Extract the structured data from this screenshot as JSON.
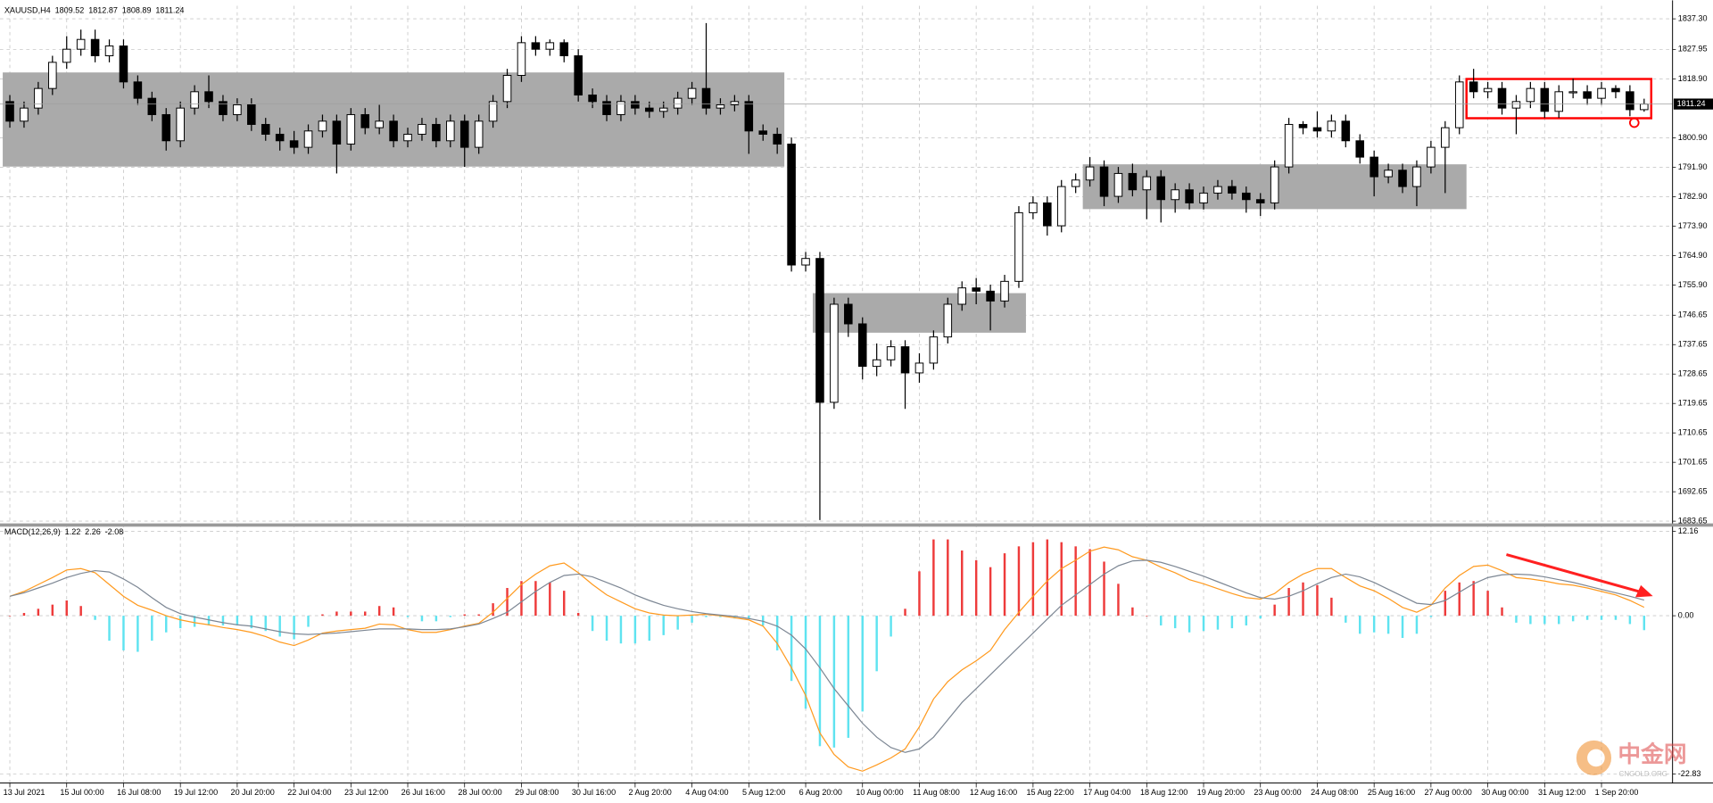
{
  "chart_data": [
    {
      "type": "candlestick",
      "title": "XAUUSD,H4",
      "categories": [
        "13 Jul 2021",
        null,
        null,
        null,
        "15 Jul 00:00",
        null,
        null,
        null,
        "16 Jul 08:00",
        null,
        null,
        null,
        "19 Jul 12:00",
        null,
        null,
        null,
        "20 Jul 20:00",
        null,
        null,
        null,
        "22 Jul 04:00",
        null,
        null,
        null,
        "23 Jul 12:00",
        null,
        null,
        null,
        "26 Jul 16:00",
        null,
        null,
        null,
        "28 Jul 00:00",
        null,
        null,
        null,
        "29 Jul 08:00",
        null,
        null,
        null,
        "30 Jul 16:00",
        null,
        null,
        null,
        "2 Aug 20:00",
        null,
        null,
        null,
        "4 Aug 04:00",
        null,
        null,
        null,
        "5 Aug 12:00",
        null,
        null,
        null,
        "6 Aug 20:00",
        null,
        null,
        null,
        "10 Aug 00:00",
        null,
        null,
        null,
        "11 Aug 08:00",
        null,
        null,
        null,
        "12 Aug 16:00",
        null,
        null,
        null,
        "15 Aug 22:00",
        null,
        null,
        null,
        "17 Aug 04:00",
        null,
        null,
        null,
        "18 Aug 12:00",
        null,
        null,
        null,
        "19 Aug 20:00",
        null,
        null,
        null,
        "23 Aug 00:00",
        null,
        null,
        null,
        "24 Aug 08:00",
        null,
        null,
        null,
        "25 Aug 16:00",
        null,
        null,
        null,
        "27 Aug 00:00",
        null,
        null,
        null,
        "30 Aug 00:00",
        null,
        null,
        null,
        "31 Aug 12:00",
        null,
        null,
        null,
        "1 Sep 20:00",
        null,
        null,
        null
      ],
      "open": [
        1812,
        1806,
        1810,
        1816,
        1824,
        1828,
        1831,
        1826,
        1829,
        1818,
        1813,
        1808,
        1800,
        1810,
        1815,
        1812,
        1808,
        1811,
        1805,
        1802,
        1800,
        1798,
        1803,
        1806,
        1799,
        1808,
        1804,
        1806,
        1800,
        1802,
        1805,
        1800,
        1806,
        1798,
        1806,
        1812,
        1820,
        1830,
        1828,
        1830,
        1826,
        1814,
        1812,
        1808,
        1812,
        1810,
        1809,
        1810,
        1813,
        1816,
        1810,
        1811,
        1812,
        1803,
        1802,
        1799,
        1762,
        1764,
        1720,
        1750,
        1744,
        1731,
        1733,
        1737,
        1729,
        1732,
        1740,
        1750,
        1755,
        1754,
        1751,
        1757,
        1778,
        1781,
        1774,
        1786,
        1788,
        1792,
        1783,
        1790,
        1785,
        1789,
        1782,
        1785,
        1781,
        1784,
        1786,
        1784,
        1782,
        1781,
        1792,
        1805,
        1804,
        1803,
        1806,
        1800,
        1795,
        1789,
        1791,
        1786,
        1792,
        1798,
        1804,
        1818,
        1815,
        1816,
        1810,
        1812,
        1816,
        1809,
        1815,
        1815,
        1813,
        1816,
        1815,
        1809.52
      ],
      "high": [
        1814,
        1812,
        1818,
        1826,
        1832,
        1834,
        1834,
        1831,
        1831,
        1820,
        1815,
        1810,
        1812,
        1817,
        1820,
        1814,
        1813,
        1813,
        1807,
        1804,
        1803,
        1805,
        1808,
        1808,
        1810,
        1810,
        1811,
        1808,
        1804,
        1807,
        1807,
        1808,
        1808,
        1808,
        1814,
        1822,
        1832,
        1832,
        1831,
        1831,
        1828,
        1816,
        1814,
        1814,
        1814,
        1812,
        1812,
        1815,
        1818,
        1836,
        1813,
        1814,
        1814,
        1805,
        1804,
        1801,
        1766,
        1766,
        1752,
        1752,
        1746,
        1738,
        1739,
        1739,
        1735,
        1742,
        1752,
        1757,
        1758,
        1756,
        1759,
        1780,
        1783,
        1783,
        1788,
        1790,
        1795,
        1794,
        1792,
        1793,
        1791,
        1791,
        1787,
        1787,
        1786,
        1788,
        1788,
        1786,
        1784,
        1794,
        1807,
        1806,
        1809,
        1808,
        1808,
        1802,
        1797,
        1793,
        1793,
        1794,
        1800,
        1806,
        1820,
        1822,
        1818,
        1818,
        1814,
        1818,
        1818,
        1817,
        1819,
        1817,
        1818,
        1817,
        1817,
        1812.87
      ],
      "low": [
        1804,
        1804,
        1808,
        1814,
        1822,
        1826,
        1824,
        1824,
        1816,
        1811,
        1806,
        1797,
        1798,
        1808,
        1810,
        1806,
        1806,
        1803,
        1800,
        1797,
        1796,
        1796,
        1801,
        1790,
        1797,
        1802,
        1802,
        1798,
        1798,
        1800,
        1798,
        1798,
        1792,
        1796,
        1804,
        1810,
        1818,
        1826,
        1826,
        1824,
        1812,
        1810,
        1806,
        1806,
        1808,
        1807,
        1807,
        1808,
        1811,
        1808,
        1808,
        1809,
        1796,
        1800,
        1796,
        1760,
        1760,
        1684,
        1718,
        1740,
        1727,
        1728,
        1731,
        1718,
        1726,
        1730,
        1738,
        1748,
        1750,
        1742,
        1749,
        1755,
        1776,
        1771,
        1772,
        1784,
        1786,
        1780,
        1781,
        1783,
        1776,
        1775,
        1778,
        1779,
        1779,
        1782,
        1782,
        1778,
        1777,
        1779,
        1790,
        1802,
        1801,
        1801,
        1798,
        1793,
        1783,
        1787,
        1784,
        1780,
        1790,
        1784,
        1802,
        1813,
        1813,
        1808,
        1802,
        1810,
        1807,
        1807,
        1813,
        1811,
        1811,
        1813,
        1807.5,
        1808.89
      ],
      "close": [
        1806,
        1810,
        1816,
        1824,
        1828,
        1831,
        1826,
        1829,
        1818,
        1813,
        1808,
        1800,
        1810,
        1815,
        1812,
        1808,
        1811,
        1805,
        1802,
        1800,
        1798,
        1803,
        1806,
        1799,
        1808,
        1804,
        1806,
        1800,
        1802,
        1805,
        1800,
        1806,
        1798,
        1806,
        1812,
        1820,
        1830,
        1828,
        1830,
        1826,
        1814,
        1812,
        1808,
        1812,
        1810,
        1809,
        1810,
        1813,
        1816,
        1810,
        1811,
        1812,
        1803,
        1802,
        1799,
        1762,
        1764,
        1720,
        1750,
        1744,
        1731,
        1733,
        1737,
        1729,
        1732,
        1740,
        1750,
        1755,
        1754,
        1751,
        1757,
        1778,
        1781,
        1774,
        1786,
        1788,
        1792,
        1783,
        1790,
        1785,
        1789,
        1782,
        1785,
        1781,
        1784,
        1786,
        1784,
        1782,
        1781,
        1792,
        1805,
        1804,
        1803,
        1806,
        1800,
        1795,
        1789,
        1791,
        1786,
        1792,
        1798,
        1804,
        1818,
        1815,
        1816,
        1810,
        1812,
        1816,
        1809,
        1815,
        1815,
        1813,
        1816,
        1815,
        1809.52,
        1811.24
      ],
      "up_color": "#ffffff",
      "down_color": "#000000",
      "ylim": [
        1682.8,
        1841.3
      ],
      "yticks": [
        {
          "value": 1837.3,
          "label": "1837.30"
        },
        {
          "value": 1827.95,
          "label": "1827.95"
        },
        {
          "value": 1818.9,
          "label": "1818.90"
        },
        {
          "value": 1800.9,
          "label": "1800.90"
        },
        {
          "value": 1791.9,
          "label": "1791.90"
        },
        {
          "value": 1782.9,
          "label": "1782.90"
        },
        {
          "value": 1773.9,
          "label": "1773.90"
        },
        {
          "value": 1764.9,
          "label": "1764.90"
        },
        {
          "value": 1755.9,
          "label": "1755.90"
        },
        {
          "value": 1746.65,
          "label": "1746.65"
        },
        {
          "value": 1737.65,
          "label": "1737.65"
        },
        {
          "value": 1728.65,
          "label": "1728.65"
        },
        {
          "value": 1719.65,
          "label": "1719.65"
        },
        {
          "value": 1710.65,
          "label": "1710.65"
        },
        {
          "value": 1701.65,
          "label": "1701.65"
        },
        {
          "value": 1692.65,
          "label": "1692.65"
        },
        {
          "value": 1683.65,
          "label": "1683.65"
        }
      ],
      "grid": true,
      "last_price_line": true,
      "zones": [
        {
          "start": 0,
          "end": 54,
          "low": 1792.1,
          "high": 1820.9,
          "color": "#aaaaaa",
          "style": "fill"
        },
        {
          "start": 57,
          "end": 71,
          "low": 1741.3,
          "high": 1753.4,
          "color": "#aaaaaa",
          "style": "fill"
        },
        {
          "start": 76,
          "end": 102,
          "low": 1779.1,
          "high": 1792.8,
          "color": "#aaaaaa",
          "style": "fill"
        },
        {
          "start": 103,
          "end": 115,
          "low": 1806.9,
          "high": 1818.9,
          "color": "#ff0000",
          "style": "outline"
        }
      ]
    },
    {
      "type": "macd",
      "title": "MACD(12,26,9)",
      "series": [
        {
          "style": "histogram",
          "color": "#ee3b3b",
          "negative_color": "#5fe3f0",
          "values": [
            0,
            0.4,
            1,
            1.6,
            2.2,
            1.4,
            -0.6,
            -3.6,
            -5,
            -5.2,
            -3.6,
            -2.4,
            -1.8,
            -1.6,
            -1.4,
            -1.4,
            -1.4,
            -1.8,
            -2.2,
            -3,
            -3.4,
            -1.6,
            0.2,
            0.6,
            0.6,
            0.6,
            1.4,
            1.2,
            -0.2,
            -0.8,
            -0.8,
            -0.2,
            0.2,
            0.2,
            1.8,
            4,
            5,
            5,
            4.8,
            3.6,
            0.4,
            -2.2,
            -3.6,
            -4,
            -4,
            -3.6,
            -2.8,
            -2,
            -1,
            -0.2,
            -0.2,
            -0.4,
            -0.4,
            -1.4,
            -5,
            -9.4,
            -13.4,
            -18.8,
            -19,
            -17.6,
            -13.8,
            -8,
            -3,
            1,
            6.4,
            11,
            11,
            9.4,
            8,
            7,
            9,
            10,
            10.6,
            11,
            10.6,
            10,
            9.6,
            7.8,
            4.6,
            1.2,
            0,
            -1.4,
            -1.8,
            -2.4,
            -2.2,
            -2,
            -1.8,
            -1.4,
            -0.4,
            1.6,
            4,
            4.8,
            4.4,
            2.6,
            -1,
            -2.6,
            -2.4,
            -2.6,
            -3.2,
            -2.6,
            -0.2,
            3.6,
            4.8,
            5,
            3.6,
            1.2,
            -1,
            -1.2,
            -1.2,
            -1.2,
            -0.8,
            -0.6,
            -0.6,
            -0.6,
            -1.2,
            -2.08
          ]
        },
        {
          "style": "line",
          "color": "#ff9a1f",
          "values": [
            2.8,
            3.5,
            4.5,
            5.5,
            6.6,
            6.8,
            6.2,
            4.5,
            2.8,
            1.5,
            0.8,
            0,
            -0.6,
            -1,
            -1.3,
            -1.7,
            -2,
            -2.4,
            -3,
            -3.8,
            -4.3,
            -3.5,
            -2.5,
            -2.2,
            -2,
            -1.8,
            -1.2,
            -1.3,
            -2,
            -2.4,
            -2.4,
            -2,
            -1.5,
            -1.1,
            0.5,
            2.5,
            4.5,
            6,
            7.2,
            7.6,
            6.2,
            4.5,
            3,
            2,
            1,
            0.4,
            0.1,
            0,
            0.1,
            0.2,
            0,
            -0.3,
            -0.6,
            -1.5,
            -4,
            -7.5,
            -11.5,
            -16.9,
            -20,
            -21.8,
            -22.4,
            -21.5,
            -20.5,
            -19.2,
            -16,
            -12,
            -9.5,
            -7.8,
            -6.5,
            -5,
            -2,
            0.5,
            2.8,
            5,
            6.8,
            8,
            9.3,
            9.9,
            9.5,
            8.5,
            8,
            7,
            6.2,
            5.2,
            4.6,
            3.9,
            3.2,
            2.6,
            2.4,
            3.2,
            4.8,
            6,
            6.8,
            6.8,
            5.5,
            4.3,
            3.6,
            2.5,
            1.2,
            0.5,
            1.5,
            4,
            5.8,
            7.1,
            7.3,
            6.5,
            5.5,
            5.3,
            5,
            4.6,
            4.4,
            4,
            3.5,
            3,
            2.2,
            1.22
          ]
        },
        {
          "style": "line",
          "color": "#7d8794",
          "values": [
            2.8,
            3.3,
            4,
            4.7,
            5.5,
            6.1,
            6.5,
            6.3,
            5.3,
            4.1,
            2.6,
            1.2,
            0.3,
            -0.2,
            -0.6,
            -1,
            -1.3,
            -1.5,
            -1.9,
            -2.3,
            -2.6,
            -2.7,
            -2.6,
            -2.5,
            -2.3,
            -2.1,
            -1.9,
            -1.9,
            -1.9,
            -2,
            -2,
            -1.9,
            -1.6,
            -1.2,
            -0.4,
            0.5,
            2,
            3.5,
            4.8,
            5.8,
            6,
            5.6,
            4.8,
            4,
            3,
            2.2,
            1.5,
            1,
            0.6,
            0.3,
            0.1,
            -0.1,
            -0.4,
            -0.8,
            -1.5,
            -2.8,
            -4.8,
            -7.5,
            -10.5,
            -13,
            -15.5,
            -17.5,
            -19,
            -19.7,
            -19.2,
            -17.5,
            -15,
            -12.5,
            -10.5,
            -8.5,
            -6.5,
            -4.5,
            -2.5,
            -0.5,
            1.5,
            3,
            4.5,
            6,
            7.2,
            7.9,
            8,
            7.7,
            7.1,
            6.4,
            5.7,
            4.9,
            4.1,
            3.3,
            2.6,
            2.4,
            2.8,
            3.6,
            4.6,
            5.5,
            6,
            5.6,
            4.8,
            3.8,
            2.8,
            1.8,
            1.6,
            2.2,
            3.4,
            4.6,
            5.5,
            5.9,
            6,
            5.9,
            5.6,
            5.2,
            4.8,
            4.3,
            3.8,
            3.3,
            2.8,
            2.26
          ]
        }
      ],
      "ylim": [
        -23.8,
        12.6
      ],
      "yticks": [
        12.16,
        {
          "value": 0,
          "label": "0.00"
        },
        -22.83
      ],
      "grid": true
    }
  ],
  "watermark": {
    "name": "中金网",
    "site": "CNGOLD.ORG"
  }
}
